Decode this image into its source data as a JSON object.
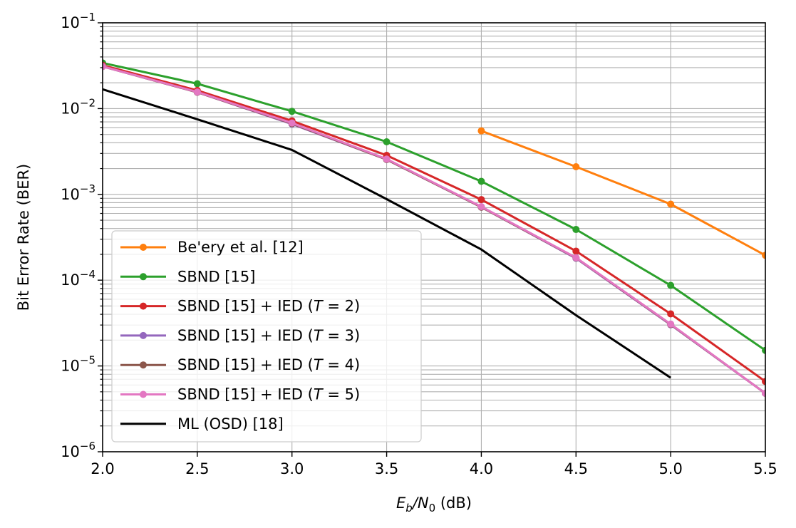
{
  "chart_data": {
    "type": "line",
    "title": "",
    "xlabel": "E_b/N_0 (dB)",
    "xlabel_parts": {
      "e": "E",
      "b": "b",
      "slash": "/N",
      "zero": "0",
      "unit": " (dB)"
    },
    "ylabel": "Bit Error Rate (BER)",
    "xlim": [
      2.0,
      5.5
    ],
    "ylim": [
      1e-06,
      0.1
    ],
    "yscale": "log",
    "grid": true,
    "legend_position": "lower-left",
    "x_ticks": [
      2.0,
      2.5,
      3.0,
      3.5,
      4.0,
      4.5,
      5.0,
      5.5
    ],
    "x_tick_labels": [
      "2.0",
      "2.5",
      "3.0",
      "3.5",
      "4.0",
      "4.5",
      "5.0",
      "5.5"
    ],
    "y_tick_exponents": [
      -1,
      -2,
      -3,
      -4,
      -5,
      -6
    ],
    "y_tick_base": "10",
    "series": [
      {
        "name": "Be'ery et al. [12]",
        "legend": {
          "main": "Be'ery et al. [12]"
        },
        "color": "#ff7f0e",
        "marker": true,
        "x": [
          4.0,
          4.5,
          5.0,
          5.5
        ],
        "y": [
          0.0055,
          0.0021,
          0.00077,
          0.000195
        ]
      },
      {
        "name": "SBND [15]",
        "legend": {
          "main": "SBND [15]"
        },
        "color": "#2ca02c",
        "marker": true,
        "x": [
          2.0,
          2.5,
          3.0,
          3.5,
          4.0,
          4.5,
          5.0,
          5.5
        ],
        "y": [
          0.034,
          0.0195,
          0.0093,
          0.0041,
          0.00142,
          0.00039,
          8.7e-05,
          1.52e-05
        ]
      },
      {
        "name": "SBND [15] + IED (T = 2)",
        "legend": {
          "main": "SBND [15] + IED (",
          "t": "T",
          "eq": " = 2)"
        },
        "color": "#d62728",
        "marker": true,
        "x": [
          2.0,
          2.5,
          3.0,
          3.5,
          4.0,
          4.5,
          5.0,
          5.5
        ],
        "y": [
          0.032,
          0.0163,
          0.0072,
          0.00285,
          0.00087,
          0.000218,
          4.05e-05,
          6.6e-06
        ]
      },
      {
        "name": "SBND [15] + IED (T = 3)",
        "legend": {
          "main": "SBND [15] + IED (",
          "t": "T",
          "eq": " = 3)"
        },
        "color": "#9467bd",
        "marker": true,
        "x": [
          2.0,
          2.5,
          3.0,
          3.5,
          4.0,
          4.5,
          5.0,
          5.5
        ],
        "y": [
          0.031,
          0.0155,
          0.0066,
          0.00255,
          0.00071,
          0.00018,
          3.02e-05,
          4.8e-06
        ]
      },
      {
        "name": "SBND [15] + IED (T = 4)",
        "legend": {
          "main": "SBND [15] + IED (",
          "t": "T",
          "eq": " = 4)"
        },
        "color": "#8c564b",
        "marker": true,
        "x": [
          2.0,
          2.5,
          3.0,
          3.5,
          4.0,
          4.5,
          5.0,
          5.5
        ],
        "y": [
          0.031,
          0.0155,
          0.0067,
          0.00255,
          0.00071,
          0.000182,
          3.05e-05,
          4.8e-06
        ]
      },
      {
        "name": "SBND [15] + IED (T = 5)",
        "legend": {
          "main": "SBND [15] + IED (",
          "t": "T",
          "eq": " = 5)"
        },
        "color": "#e377c2",
        "marker": true,
        "x": [
          2.0,
          2.5,
          3.0,
          3.5,
          4.0,
          4.5,
          5.0,
          5.5
        ],
        "y": [
          0.031,
          0.0156,
          0.0068,
          0.00258,
          0.00072,
          0.000183,
          3.08e-05,
          4.8e-06
        ]
      },
      {
        "name": "ML (OSD) [18]",
        "legend": {
          "main": "ML (OSD) [18]"
        },
        "color": "#000000",
        "marker": false,
        "x": [
          2.0,
          2.5,
          3.0,
          3.5,
          4.0,
          4.5,
          5.0
        ],
        "y": [
          0.0168,
          0.0075,
          0.0033,
          0.00088,
          0.000228,
          3.9e-05,
          7.3e-06
        ]
      }
    ]
  }
}
